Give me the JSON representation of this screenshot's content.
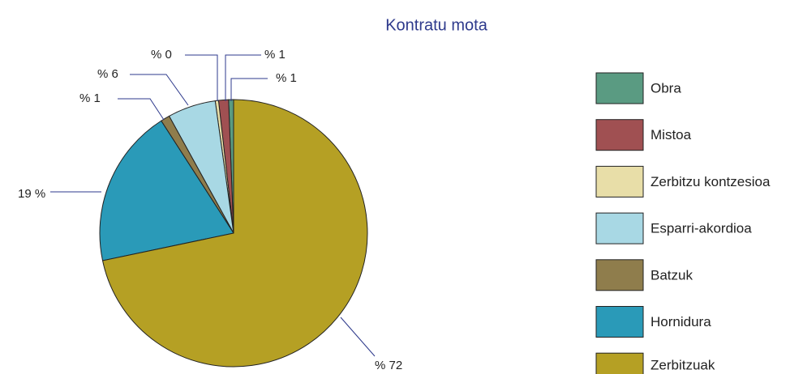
{
  "chart_data": {
    "type": "pie",
    "title": "Kontratu mota",
    "categories": [
      "Obra",
      "Mistoa",
      "Zerbitzu kontzesioa",
      "Esparri-akordioa",
      "Batzuk",
      "Hornidura",
      "Zerbitzuak"
    ],
    "values": [
      0.6,
      1.2,
      0.4,
      5.8,
      1.1,
      19.2,
      71.7
    ],
    "value_labels": [
      "% 1",
      "% 1",
      "% 0",
      "% 6",
      "% 1",
      "19 %",
      "% 72"
    ],
    "colors": [
      "#5a9b82",
      "#a05052",
      "#e8dea8",
      "#a8d8e4",
      "#8f7d4c",
      "#2a9ab8",
      "#b5a024"
    ],
    "legend": "right"
  }
}
